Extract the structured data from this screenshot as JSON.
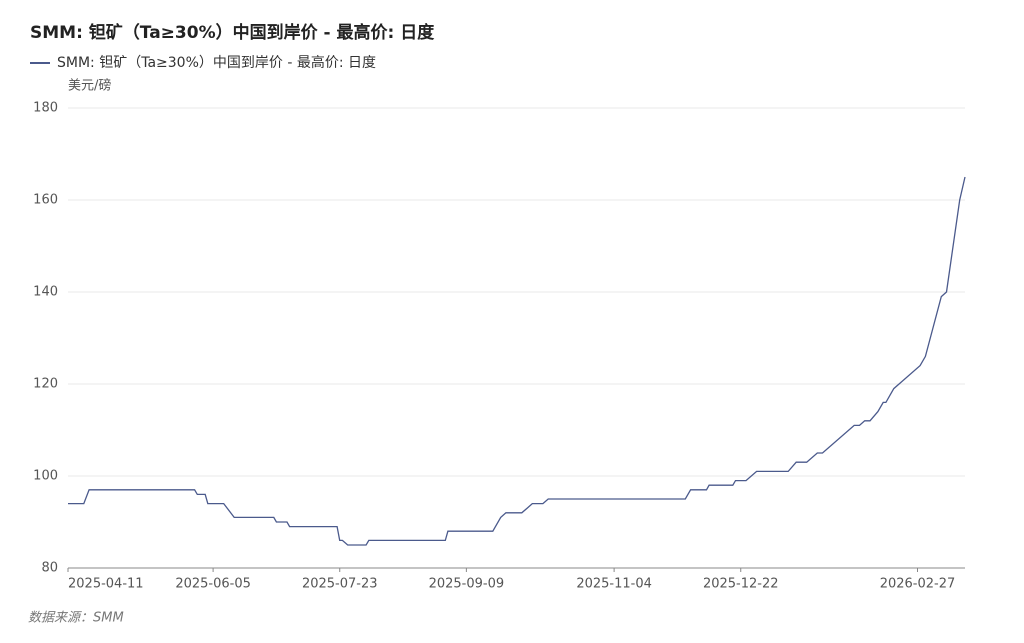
{
  "chart_data": {
    "type": "line",
    "title": "SMM: 钽矿（Ta≥30%）中国到岸价 - 最高价: 日度",
    "y_axis_label": "美元/磅",
    "source": "数据来源：SMM",
    "x": [
      "2025-04-11",
      "2025-04-17",
      "2025-04-19",
      "2025-05-29",
      "2025-05-30",
      "2025-06-02",
      "2025-06-03",
      "2025-06-09",
      "2025-06-13",
      "2025-06-28",
      "2025-06-29",
      "2025-07-03",
      "2025-07-04",
      "2025-07-22",
      "2025-07-23",
      "2025-07-24",
      "2025-07-26",
      "2025-08-02",
      "2025-08-03",
      "2025-09-01",
      "2025-09-02",
      "2025-09-19",
      "2025-09-22",
      "2025-09-24",
      "2025-09-30",
      "2025-10-02",
      "2025-10-04",
      "2025-10-08",
      "2025-10-10",
      "2025-12-01",
      "2025-12-03",
      "2025-12-09",
      "2025-12-10",
      "2025-12-19",
      "2025-12-20",
      "2025-12-24",
      "2025-12-28",
      "2026-01-09",
      "2026-01-12",
      "2026-01-16",
      "2026-01-20",
      "2026-01-22",
      "2026-02-03",
      "2026-02-05",
      "2026-02-07",
      "2026-02-09",
      "2026-02-12",
      "2026-02-14",
      "2026-02-15",
      "2026-02-18",
      "2026-02-28",
      "2026-03-02",
      "2026-03-08",
      "2026-03-10",
      "2026-03-15",
      "2026-03-17"
    ],
    "series": [
      {
        "name": "SMM: 钽矿（Ta≥30%）中国到岸价 - 最高价: 日度",
        "color": "#4b5a8c",
        "values": [
          94,
          94,
          97,
          97,
          96,
          96,
          94,
          94,
          91,
          91,
          90,
          90,
          89,
          89,
          86,
          86,
          85,
          85,
          86,
          86,
          88,
          88,
          91,
          92,
          92,
          93,
          94,
          94,
          95,
          95,
          97,
          97,
          98,
          98,
          99,
          99,
          101,
          101,
          103,
          103,
          105,
          105,
          111,
          111,
          112,
          112,
          114,
          116,
          116,
          119,
          124,
          126,
          139,
          140,
          160,
          165
        ]
      }
    ],
    "xlim": [
      "2025-04-11",
      "2026-03-17"
    ],
    "xticks": [
      "2025-04-11",
      "2025-06-05",
      "2025-07-23",
      "2025-09-09",
      "2025-11-04",
      "2025-12-22",
      "2026-02-27"
    ],
    "ylim": [
      80,
      180
    ],
    "yticks": [
      80,
      100,
      120,
      140,
      160,
      180
    ],
    "grid": true,
    "legend": "top-left"
  }
}
